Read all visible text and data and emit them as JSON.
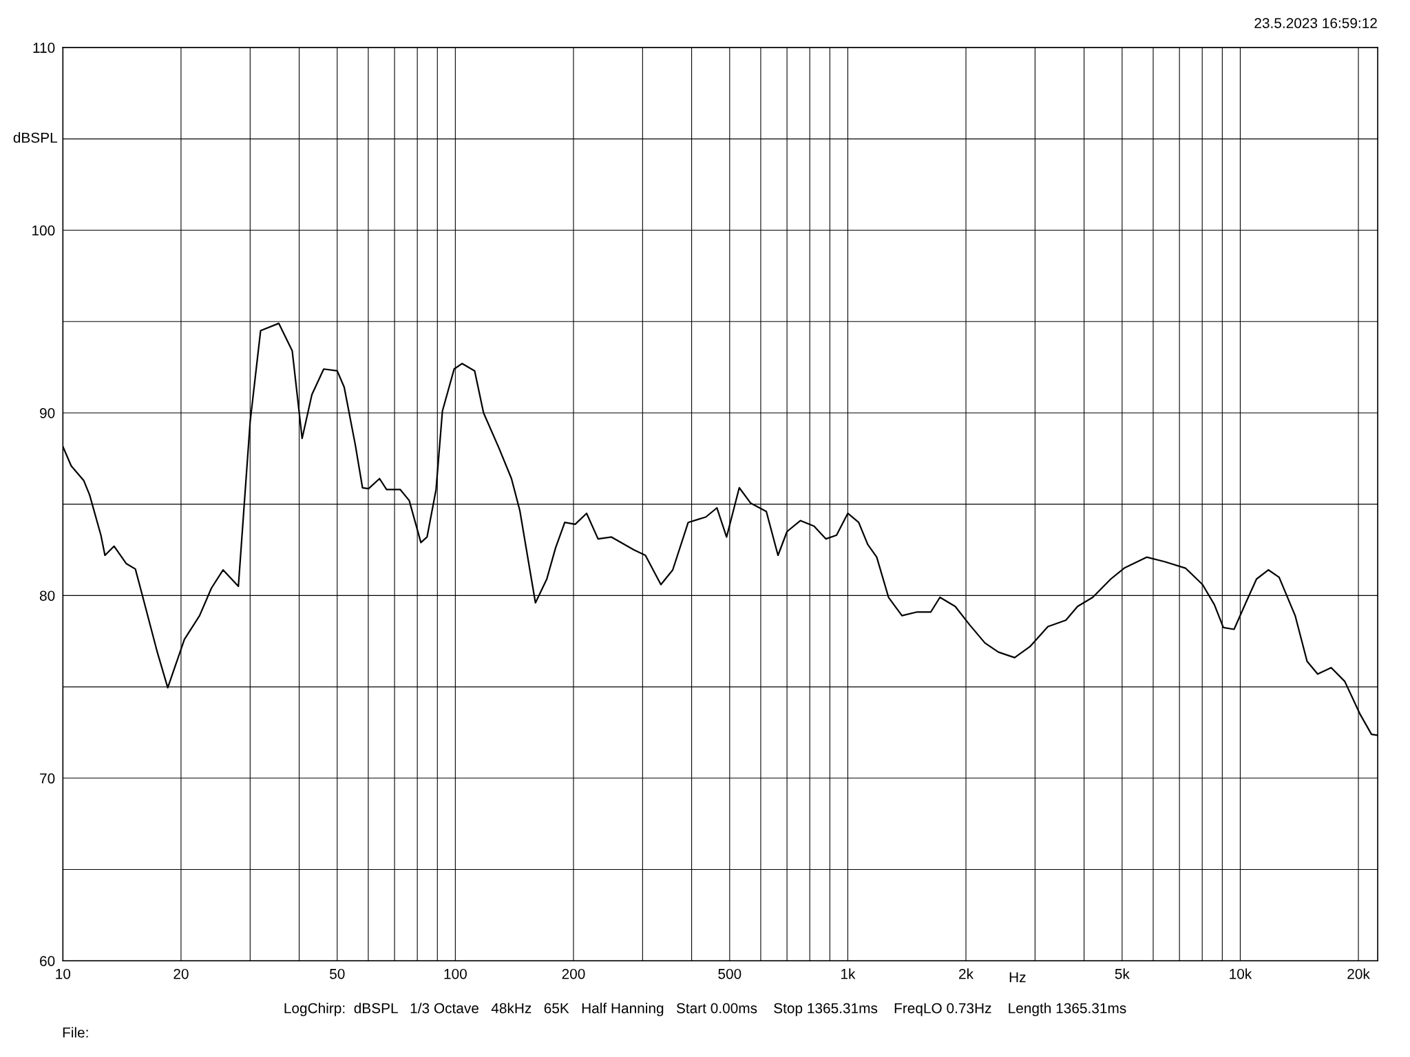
{
  "chart_data": {
    "type": "line",
    "xlabel": "Hz",
    "ylabel": "dBSPL",
    "annotations": [
      "23.5.2023 16:59:12",
      "LogChirp:  dBSPL   1/3 Octave   48kHz   65K   Half Hanning   Start 0.00ms    Stop 1365.31ms    FreqLO 0.73Hz    Length 1365.31ms",
      "File:"
    ],
    "log": "x",
    "grid": true,
    "legend": false,
    "marker": "none",
    "line_style": "solid",
    "xlim": [
      10,
      22400
    ],
    "ylim": [
      60,
      110
    ],
    "xticks": [
      10,
      20,
      {
        "value": 30,
        "label": null
      },
      {
        "value": 40,
        "label": null
      },
      50,
      {
        "value": 60,
        "label": null
      },
      {
        "value": 70,
        "label": null
      },
      {
        "value": 80,
        "label": null
      },
      {
        "value": 90,
        "label": null
      },
      100,
      200,
      {
        "value": 300,
        "label": null
      },
      {
        "value": 400,
        "label": null
      },
      500,
      {
        "value": 600,
        "label": null
      },
      {
        "value": 700,
        "label": null
      },
      {
        "value": 800,
        "label": null
      },
      {
        "value": 900,
        "label": null
      },
      {
        "value": 1000,
        "label": "1k"
      },
      {
        "value": 2000,
        "label": "2k"
      },
      {
        "value": 3000,
        "label": null
      },
      {
        "value": 4000,
        "label": null
      },
      {
        "value": 5000,
        "label": "5k"
      },
      {
        "value": 6000,
        "label": null
      },
      {
        "value": 7000,
        "label": null
      },
      {
        "value": 8000,
        "label": null
      },
      {
        "value": 9000,
        "label": null
      },
      {
        "value": 10000,
        "label": "10k"
      },
      {
        "value": 20000,
        "label": "20k"
      }
    ],
    "yticks": [
      60,
      {
        "value": 65,
        "label": null
      },
      70,
      {
        "value": 75,
        "label": null
      },
      80,
      {
        "value": 85,
        "label": null
      },
      90,
      {
        "value": 95,
        "label": null
      },
      100,
      {
        "value": 105,
        "label": null
      },
      110
    ],
    "series": [
      {
        "color": "#000000",
        "x": [
          10,
          10.5,
          11.3,
          11.7,
          12.5,
          12.8,
          13.5,
          14.5,
          15.3,
          15.9,
          17.4,
          18.5,
          20.4,
          22.3,
          23.9,
          25.6,
          28.0,
          30.0,
          31.9,
          35.5,
          38.4,
          40.7,
          43.1,
          46.2,
          50.0,
          52.1,
          55.6,
          58.0,
          60.1,
          64.1,
          66.8,
          72.4,
          76.3,
          81.7,
          84.7,
          89.3,
          92.7,
          99.3,
          104,
          112,
          118,
          129,
          139,
          146,
          154,
          160,
          171,
          180,
          190,
          202,
          216,
          231,
          250,
          285,
          305,
          334,
          358,
          392,
          435,
          464,
          491,
          529,
          566,
          620,
          664,
          700,
          757,
          820,
          879,
          936,
          1000,
          1066,
          1124,
          1185,
          1270,
          1374,
          1503,
          1628,
          1717,
          1878,
          2043,
          2236,
          2420,
          2661,
          2911,
          3236,
          3595,
          3850,
          4209,
          4677,
          5062,
          5774,
          6421,
          7250,
          8016,
          8590,
          9057,
          9645,
          10330,
          11000,
          11800,
          12560,
          13800,
          14800,
          15750,
          17050,
          18460,
          20200,
          21600,
          22400
        ],
        "values": [
          88.15,
          87.1,
          86.3,
          85.5,
          83.3,
          82.2,
          82.7,
          81.75,
          81.45,
          80.1,
          76.9,
          74.95,
          77.6,
          78.9,
          80.4,
          81.4,
          80.5,
          89.5,
          94.5,
          94.9,
          93.4,
          88.6,
          91.0,
          92.4,
          92.3,
          91.4,
          88.25,
          85.9,
          85.85,
          86.4,
          85.8,
          85.8,
          85.2,
          82.9,
          83.2,
          85.8,
          90.1,
          92.4,
          92.7,
          92.3,
          90.0,
          88.1,
          86.4,
          84.65,
          81.7,
          79.6,
          80.9,
          82.6,
          84.0,
          83.9,
          84.5,
          83.1,
          83.2,
          82.5,
          82.2,
          80.6,
          81.4,
          84.0,
          84.3,
          84.8,
          83.2,
          85.9,
          85.05,
          84.6,
          82.2,
          83.5,
          84.1,
          83.8,
          83.1,
          83.3,
          84.5,
          84.0,
          82.8,
          82.1,
          79.9,
          78.9,
          79.1,
          79.1,
          79.9,
          79.4,
          78.4,
          77.4,
          76.9,
          76.6,
          77.2,
          78.3,
          78.65,
          79.4,
          79.9,
          80.9,
          81.5,
          82.1,
          81.85,
          81.5,
          80.6,
          79.5,
          78.25,
          78.15,
          79.6,
          80.9,
          81.4,
          81.0,
          78.9,
          76.4,
          75.7,
          76.05,
          75.3,
          73.5,
          72.4,
          72.35
        ]
      }
    ]
  }
}
